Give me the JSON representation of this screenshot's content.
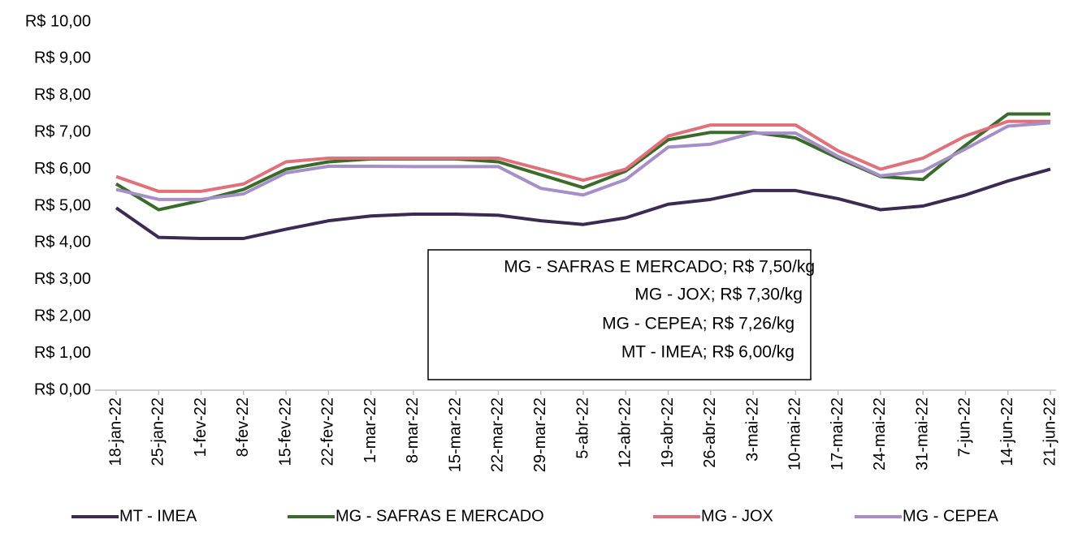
{
  "chart_data": {
    "type": "line",
    "categories": [
      "18-jan-22",
      "25-jan-22",
      "1-fev-22",
      "8-fev-22",
      "15-fev-22",
      "22-fev-22",
      "1-mar-22",
      "8-mar-22",
      "15-mar-22",
      "22-mar-22",
      "29-mar-22",
      "5-abr-22",
      "12-abr-22",
      "19-abr-22",
      "26-abr-22",
      "3-mai-22",
      "10-mai-22",
      "17-mai-22",
      "24-mai-22",
      "31-mai-22",
      "7-jun-22",
      "14-jun-22",
      "21-jun-22"
    ],
    "series": [
      {
        "name": "MT - IMEA",
        "color": "#3b2a52",
        "values": [
          4.95,
          4.15,
          4.12,
          4.12,
          4.37,
          4.6,
          4.73,
          4.78,
          4.78,
          4.75,
          4.6,
          4.5,
          4.68,
          5.05,
          5.18,
          5.42,
          5.42,
          5.2,
          4.9,
          5.0,
          5.3,
          5.68,
          6.0
        ]
      },
      {
        "name": "MG - SAFRAS E MERCADO",
        "color": "#3b6b2b",
        "values": [
          5.6,
          4.9,
          5.15,
          5.45,
          6.0,
          6.2,
          6.28,
          6.28,
          6.28,
          6.2,
          5.85,
          5.5,
          5.95,
          6.8,
          7.0,
          7.0,
          6.85,
          6.3,
          5.8,
          5.72,
          6.65,
          7.5,
          7.5
        ]
      },
      {
        "name": "MG - JOX",
        "color": "#e0707a",
        "values": [
          5.8,
          5.4,
          5.4,
          5.6,
          6.2,
          6.3,
          6.3,
          6.3,
          6.3,
          6.3,
          6.0,
          5.7,
          6.0,
          6.9,
          7.2,
          7.2,
          7.2,
          6.5,
          6.0,
          6.3,
          6.9,
          7.3,
          7.3
        ]
      },
      {
        "name": "MG - CEPEA",
        "color": "#a68fc6",
        "values": [
          5.45,
          5.18,
          5.18,
          5.33,
          5.9,
          6.08,
          6.08,
          6.07,
          6.07,
          6.07,
          5.48,
          5.3,
          5.72,
          6.6,
          6.68,
          6.98,
          6.98,
          6.35,
          5.82,
          5.95,
          6.55,
          7.17,
          7.26
        ]
      }
    ],
    "ylim": [
      0,
      10
    ],
    "yticks": [
      {
        "value": 0,
        "label": "R$ 0,00"
      },
      {
        "value": 1,
        "label": "R$ 1,00"
      },
      {
        "value": 2,
        "label": "R$ 2,00"
      },
      {
        "value": 3,
        "label": "R$ 3,00"
      },
      {
        "value": 4,
        "label": "R$ 4,00"
      },
      {
        "value": 5,
        "label": "R$ 5,00"
      },
      {
        "value": 6,
        "label": "R$ 6,00"
      },
      {
        "value": 7,
        "label": "R$ 7,00"
      },
      {
        "value": 8,
        "label": "R$ 8,00"
      },
      {
        "value": 9,
        "label": "R$ 9,00"
      },
      {
        "value": 10,
        "label": "R$ 10,00"
      }
    ],
    "grid": false,
    "legend": "bottom",
    "annotations": [
      "MG - SAFRAS E MERCADO; R$ 7,50/kg",
      "MG - JOX; R$ 7,30/kg",
      "MG - CEPEA; R$ 7,26/kg",
      "MT - IMEA; R$ 6,00/kg"
    ]
  }
}
